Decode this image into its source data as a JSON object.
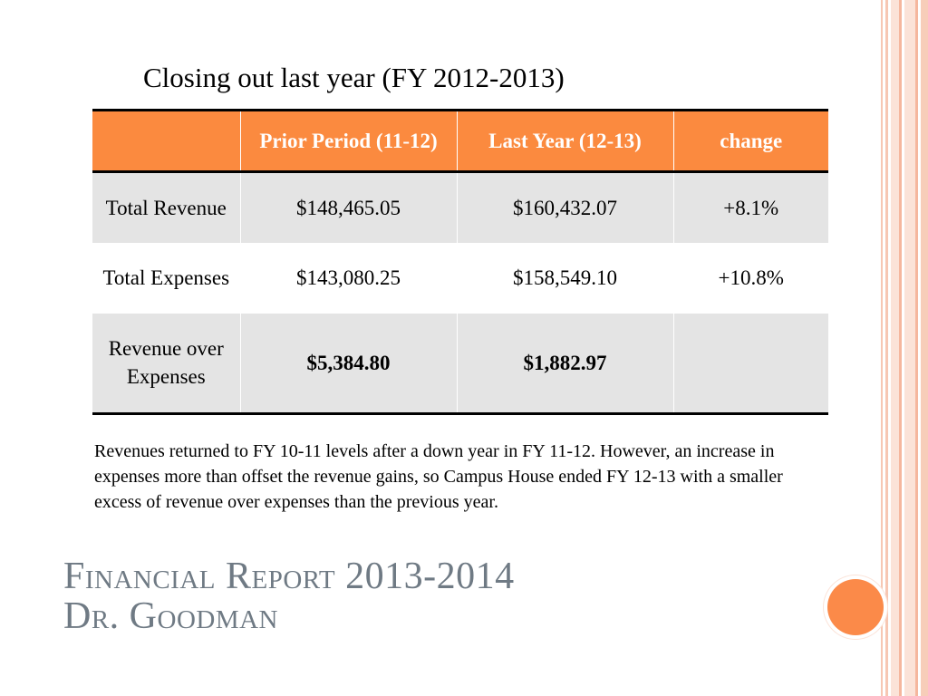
{
  "slide": {
    "subtitle": "Closing out last year (FY 2012-2013)",
    "title_line1": "Financial Report 2013-2014",
    "title_line2": "Dr. Goodman",
    "note": "Revenues returned to FY 10-11 levels after a down year in FY 11-12. However, an increase in expenses more than offset the revenue gains, so Campus House ended FY 12-13 with a smaller excess of revenue over expenses than the previous year."
  },
  "table": {
    "headers": [
      "",
      "Prior Period (11-12)",
      "Last Year (12-13)",
      "change"
    ],
    "rows": [
      [
        "Total Revenue",
        "$148,465.05",
        "$160,432.07",
        "+8.1%"
      ],
      [
        "Total Expenses",
        "$143,080.25",
        "$158,549.10",
        "+10.8%"
      ],
      [
        "Revenue over Expenses",
        "$5,384.80",
        "$1,882.97",
        ""
      ]
    ]
  },
  "colors": {
    "header_bg": "#fb8a3f",
    "row_shade": "#e4e4e4",
    "title_color": "#6f7a84",
    "accent_circle": "#fb8a49"
  }
}
